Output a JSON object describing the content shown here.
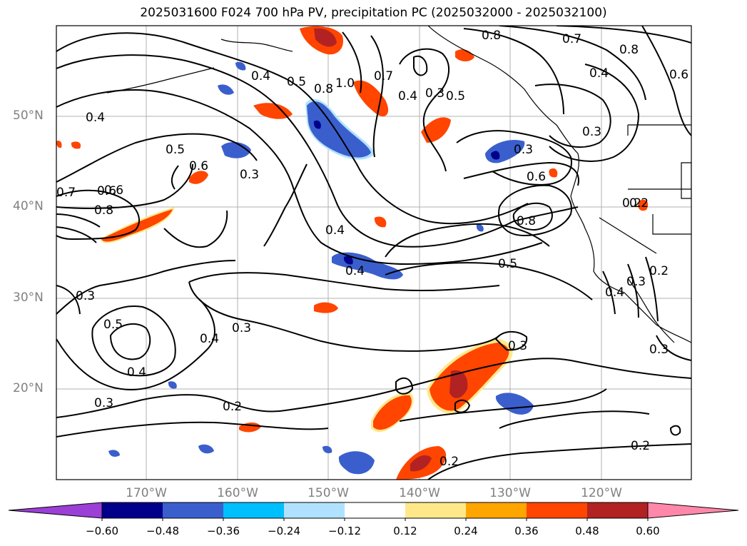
{
  "title": "2025031600 F024 700 hPa PV, precipitation PC (2025032000 - 2025032100)",
  "lat_labels": [
    "50°N",
    "40°N",
    "30°N",
    "20°N"
  ],
  "lon_labels": [
    "170°W",
    "160°W",
    "150°W",
    "140°W",
    "130°W",
    "120°W"
  ],
  "colorbar": {
    "ticks": [
      "−0.60",
      "−0.48",
      "−0.36",
      "−0.24",
      "−0.12",
      "0.12",
      "0.24",
      "0.36",
      "0.48",
      "0.60"
    ],
    "colors": [
      "#9b3fd6",
      "#00008b",
      "#3a5fcd",
      "#00bfff",
      "#b0e2ff",
      "#ffffff",
      "#ffe88a",
      "#ffa500",
      "#ff4500",
      "#b22222",
      "#ff88aa"
    ]
  },
  "contour_labels": [
    "0.4",
    "0.5",
    "0.6",
    "0.8",
    "1.0",
    "0.7",
    "0.4",
    "0.5",
    "0.8",
    "0.7",
    "0.8",
    "0.6",
    "0.4",
    "0.3",
    "0.6",
    "0.8",
    "0.6",
    "0.3",
    "0.4",
    "0.5",
    "0.4",
    "0.3",
    "0.3",
    "0.5",
    "0.4",
    "0.3",
    "0.4",
    "0.2",
    "0.3",
    "0.2",
    "0.3",
    "0.4",
    "0.3",
    "0.2",
    "0.2",
    "0.3",
    "0.2",
    "0.2",
    "0.7",
    "0.6",
    "0.8",
    "0.5",
    "0.3",
    "0.4"
  ]
}
